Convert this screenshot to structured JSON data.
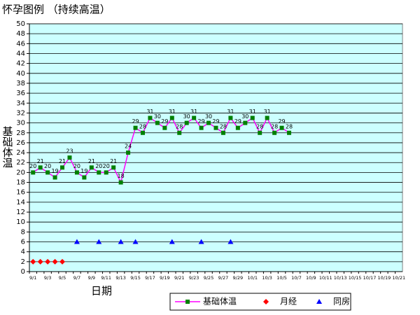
{
  "chart_data": {
    "type": "line",
    "title": "怀孕图例 （持续高温）",
    "y_label": "基础体温",
    "x_label": "日期",
    "categories": [
      "9/1",
      null,
      "9/3",
      null,
      "9/5",
      null,
      "9/7",
      null,
      "9/9",
      null,
      "9/11",
      null,
      "9/13",
      null,
      "9/15",
      null,
      "9/17",
      null,
      "9/19",
      null,
      "9/21",
      null,
      "9/23",
      null,
      "9/25",
      null,
      "9/27",
      null,
      "9/29",
      null,
      "10/1",
      null,
      "10/3",
      null,
      "10/5",
      null,
      "10/7",
      null,
      "10/9",
      null,
      "10/11",
      null,
      "10/13",
      null,
      "10/15",
      null,
      "10/17",
      null,
      "10/19",
      null,
      "10/21"
    ],
    "ylim": [
      0,
      50
    ],
    "yticks": [
      0,
      2,
      4,
      6,
      8,
      10,
      12,
      14,
      16,
      18,
      20,
      22,
      24,
      26,
      28,
      30,
      32,
      34,
      36,
      38,
      40,
      42,
      44,
      46,
      48,
      50
    ],
    "grid": true,
    "legend": "bottom",
    "series": [
      {
        "name": "基础体温",
        "color": "#ff00ff",
        "marker_color": "#008000",
        "marker": "square",
        "line": true,
        "data_labels": true,
        "values": [
          20,
          21,
          20,
          19,
          21,
          23,
          20,
          19,
          21,
          20,
          20,
          21,
          18,
          24,
          29,
          28,
          31,
          30,
          29,
          31,
          28,
          30,
          31,
          29,
          30,
          29,
          28,
          31,
          29,
          30,
          31,
          28,
          31,
          28,
          29,
          28,
          null,
          null,
          null,
          null,
          null,
          null,
          null,
          null,
          null,
          null,
          null,
          null,
          null,
          null,
          null
        ]
      },
      {
        "name": "月经",
        "color": "#ff0000",
        "marker": "diamond",
        "line": false,
        "data_labels": false,
        "values": [
          2,
          2,
          2,
          2,
          2,
          null,
          null,
          null,
          null,
          null,
          null,
          null,
          null,
          null,
          null,
          null,
          null,
          null,
          null,
          null,
          null,
          null,
          null,
          null,
          null,
          null,
          null,
          null,
          null,
          null,
          null,
          null,
          null,
          null,
          null,
          null,
          null,
          null,
          null,
          null,
          null,
          null,
          null,
          null,
          null,
          null,
          null,
          null,
          null,
          null,
          null
        ]
      },
      {
        "name": "同房",
        "color": "#0000ff",
        "marker": "triangle",
        "line": false,
        "data_labels": false,
        "values": [
          null,
          null,
          null,
          null,
          null,
          null,
          6,
          null,
          null,
          6,
          null,
          null,
          6,
          null,
          6,
          null,
          null,
          null,
          null,
          6,
          null,
          null,
          null,
          6,
          null,
          null,
          null,
          6,
          null,
          null,
          null,
          null,
          null,
          null,
          null,
          null,
          null,
          null,
          null,
          null,
          null,
          null,
          null,
          null,
          null,
          null,
          null,
          null,
          null,
          null,
          null
        ]
      }
    ]
  }
}
